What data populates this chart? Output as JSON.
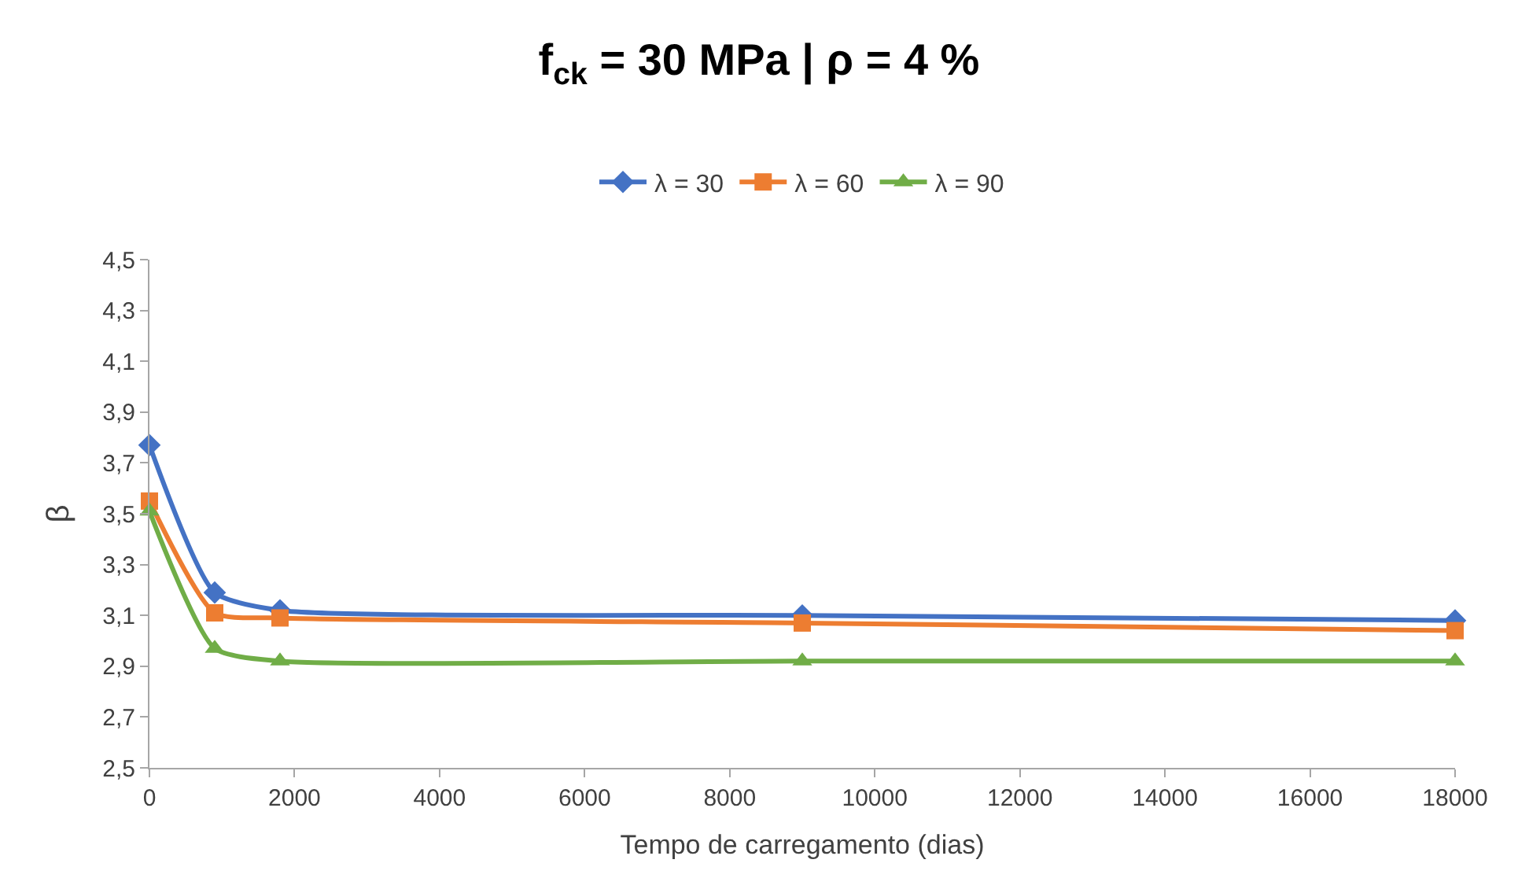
{
  "chart_data": {
    "type": "line",
    "title": "f$_{ck}$ = 30 MPa | ρ = 4 %",
    "xlabel": "Tempo de carregamento (dias)",
    "ylabel": "β",
    "x": [
      0,
      900,
      1800,
      9000,
      18000
    ],
    "series": [
      {
        "name": "λ = 30",
        "color": "#4472c4",
        "marker": "diamond",
        "values": [
          3.77,
          3.19,
          3.12,
          3.1,
          3.08
        ]
      },
      {
        "name": "λ = 60",
        "color": "#ed7d31",
        "marker": "square",
        "values": [
          3.55,
          3.11,
          3.09,
          3.07,
          3.04
        ]
      },
      {
        "name": "λ = 90",
        "color": "#70ad47",
        "marker": "triangle",
        "values": [
          3.51,
          2.97,
          2.92,
          2.92,
          2.92
        ]
      }
    ],
    "xlim": [
      0,
      18000
    ],
    "xticks": [
      0,
      2000,
      4000,
      6000,
      8000,
      10000,
      12000,
      14000,
      16000,
      18000
    ],
    "ylim": [
      2.5,
      4.5
    ],
    "yticks": [
      {
        "value": 2.5,
        "label": "2,5"
      },
      {
        "value": 2.7,
        "label": "2,7"
      },
      {
        "value": 2.9,
        "label": "2,9"
      },
      {
        "value": 3.1,
        "label": "3,1"
      },
      {
        "value": 3.3,
        "label": "3,3"
      },
      {
        "value": 3.5,
        "label": "3,5"
      },
      {
        "value": 3.7,
        "label": "3,7"
      },
      {
        "value": 3.9,
        "label": "3,9"
      },
      {
        "value": 4.1,
        "label": "4,1"
      },
      {
        "value": 4.3,
        "label": "4,3"
      },
      {
        "value": 4.5,
        "label": "4,5"
      }
    ],
    "legend": "top"
  }
}
